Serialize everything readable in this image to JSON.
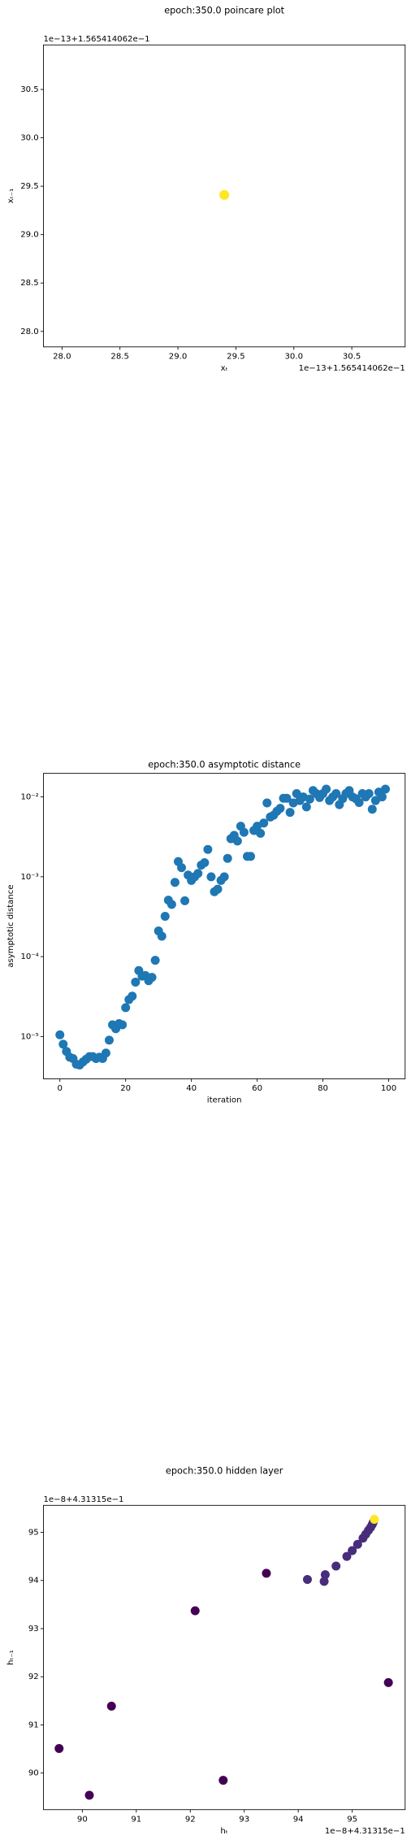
{
  "chart_data": [
    {
      "type": "scatter",
      "title": "epoch:350.0 poincare plot",
      "x_label": "xₜ",
      "y_label": "xₜ₋₁",
      "x_offset_label": "1e−13+1.565414062e−1",
      "y_offset_label": "1e−13+1.565414062e−1",
      "x": [
        29.4
      ],
      "values": [
        29.41
      ],
      "color": "#fde725",
      "xlim": [
        27.84,
        30.96
      ],
      "ylim": [
        27.84,
        30.96
      ],
      "xticks": [
        {
          "value": 28,
          "label": "28.0"
        },
        28.5,
        {
          "value": 29,
          "label": "29.0"
        },
        29.5,
        {
          "value": 30,
          "label": "30.0"
        },
        30.5
      ],
      "yticks": [
        {
          "value": 28,
          "label": "28.0"
        },
        28.5,
        {
          "value": 29,
          "label": "29.0"
        },
        29.5,
        {
          "value": 30,
          "label": "30.0"
        },
        30.5
      ]
    },
    {
      "type": "scatter",
      "title": "epoch:350.0 asymptotic distance",
      "x_label": "iteration",
      "y_label": "asymptotic distance",
      "log_y": true,
      "color": "#1f77b4",
      "x": [
        0,
        1,
        2,
        3,
        4,
        5,
        6,
        7,
        8,
        9,
        10,
        11,
        12,
        13,
        14,
        15,
        16,
        17,
        18,
        19,
        20,
        21,
        22,
        23,
        24,
        25,
        26,
        27,
        28,
        29,
        30,
        31,
        32,
        33,
        34,
        35,
        36,
        37,
        38,
        39,
        40,
        41,
        42,
        43,
        44,
        45,
        46,
        47,
        48,
        49,
        50,
        51,
        52,
        53,
        54,
        55,
        56,
        57,
        58,
        59,
        60,
        61,
        62,
        63,
        64,
        65,
        66,
        67,
        68,
        69,
        70,
        71,
        72,
        73,
        74,
        75,
        76,
        77,
        78,
        79,
        80,
        81,
        82,
        83,
        84,
        85,
        86,
        87,
        88,
        89,
        90,
        91,
        92,
        93,
        94,
        95,
        96,
        97,
        98,
        99
      ],
      "values": [
        1.05e-05,
        8e-06,
        6.5e-06,
        5.5e-06,
        5.3e-06,
        4.5e-06,
        4.4e-06,
        4.8e-06,
        5.2e-06,
        5.6e-06,
        5.6e-06,
        5.3e-06,
        5.5e-06,
        5.3e-06,
        6.2e-06,
        9e-06,
        1.4e-05,
        1.25e-05,
        1.45e-05,
        1.4e-05,
        2.3e-05,
        2.9e-05,
        3.2e-05,
        4.8e-05,
        6.7e-05,
        5.7e-05,
        5.8e-05,
        5e-05,
        5.5e-05,
        9e-05,
        0.00021,
        0.00018,
        0.00032,
        0.00051,
        0.00045,
        0.00085,
        0.00155,
        0.0013,
        0.0005,
        0.00105,
        0.0009,
        0.001,
        0.0011,
        0.0014,
        0.0015,
        0.0022,
        0.001,
        0.00065,
        0.0007,
        0.0009,
        0.001,
        0.0017,
        0.003,
        0.0033,
        0.0028,
        0.0043,
        0.0036,
        0.0018,
        0.0018,
        0.0038,
        0.0043,
        0.0035,
        0.0047,
        0.0084,
        0.0056,
        0.0059,
        0.0066,
        0.0072,
        0.0096,
        0.0096,
        0.0064,
        0.0084,
        0.011,
        0.009,
        0.01,
        0.0075,
        0.0094,
        0.012,
        0.011,
        0.0098,
        0.011,
        0.0125,
        0.009,
        0.01,
        0.011,
        0.008,
        0.0095,
        0.011,
        0.012,
        0.01,
        0.0095,
        0.0085,
        0.011,
        0.01,
        0.011,
        0.007,
        0.009,
        0.0115,
        0.01,
        0.0125
      ],
      "xlim": [
        -5,
        105
      ],
      "ylim": [
        2.95e-06,
        0.0197
      ],
      "xticks": [
        0,
        20,
        40,
        60,
        80,
        100
      ],
      "yticks": [
        {
          "value": 1e-05,
          "label": "10⁻⁵"
        },
        {
          "value": 0.0001,
          "label": "10⁻⁴"
        },
        {
          "value": 0.001,
          "label": "10⁻³"
        },
        {
          "value": 0.01,
          "label": "10⁻²"
        }
      ]
    },
    {
      "type": "scatter",
      "title": "epoch:350.0 hidden layer",
      "x_label": "hₜ",
      "y_label": "hₜ₋₁",
      "x_offset_label": "1e−8+4.31315e−1",
      "y_offset_label": "1e−8+4.31315e−1",
      "x": [
        89.57,
        90.13,
        90.54,
        92.09,
        92.61,
        93.41,
        95.67,
        94.17,
        94.48,
        94.5,
        94.7,
        94.9,
        95.0,
        95.1,
        95.2,
        95.25,
        95.3,
        95.34,
        95.37,
        95.39,
        95.41
      ],
      "values": [
        90.51,
        89.54,
        91.39,
        93.37,
        89.85,
        94.15,
        91.88,
        94.02,
        93.98,
        94.12,
        94.3,
        94.5,
        94.62,
        94.75,
        94.88,
        94.96,
        95.04,
        95.1,
        95.16,
        95.21,
        95.27
      ],
      "colors": [
        "#440154",
        "#440154",
        "#440154",
        "#440154",
        "#440154",
        "#440154",
        "#440154",
        "#472d7b",
        "#472d7b",
        "#472d7b",
        "#472d7b",
        "#472d7b",
        "#472d7b",
        "#472d7b",
        "#472d7b",
        "#472d7b",
        "#472d7b",
        "#472d7b",
        "#472d7b",
        "#472d7b",
        "#fde725"
      ],
      "xlim": [
        89.28,
        95.98
      ],
      "ylim": [
        89.24,
        95.56
      ],
      "xticks": [
        90,
        91,
        92,
        93,
        94,
        95
      ],
      "yticks": [
        90,
        91,
        92,
        93,
        94,
        95
      ]
    }
  ]
}
